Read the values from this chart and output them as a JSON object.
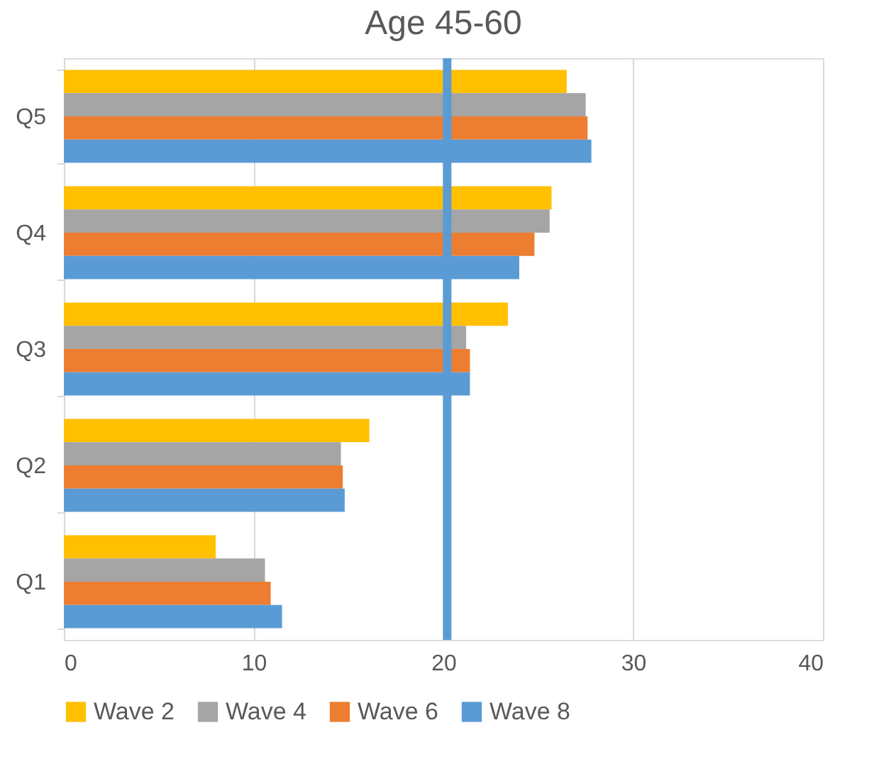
{
  "chart_data": {
    "type": "bar",
    "orientation": "horizontal",
    "title": "Age 45-60",
    "categories": [
      "Q5",
      "Q4",
      "Q3",
      "Q2",
      "Q1"
    ],
    "series": [
      {
        "name": "Wave 2",
        "color": "#ffc000",
        "values": [
          26.5,
          25.7,
          23.4,
          16.1,
          8.0
        ]
      },
      {
        "name": "Wave 4",
        "color": "#a5a5a5",
        "values": [
          27.5,
          25.6,
          21.2,
          14.6,
          10.6
        ]
      },
      {
        "name": "Wave 6",
        "color": "#ed7d31",
        "values": [
          27.6,
          24.8,
          21.4,
          14.7,
          10.9
        ]
      },
      {
        "name": "Wave 8",
        "color": "#5b9bd5",
        "values": [
          27.8,
          24.0,
          21.4,
          14.8,
          11.5
        ]
      }
    ],
    "xlim": [
      0,
      40
    ],
    "xticks": [
      0,
      10,
      20,
      30,
      40
    ],
    "grid": "x",
    "legend": "bottom",
    "ref_lines": [
      {
        "axis": "x",
        "value": 20.2,
        "color": "#5b9bd5"
      }
    ]
  }
}
